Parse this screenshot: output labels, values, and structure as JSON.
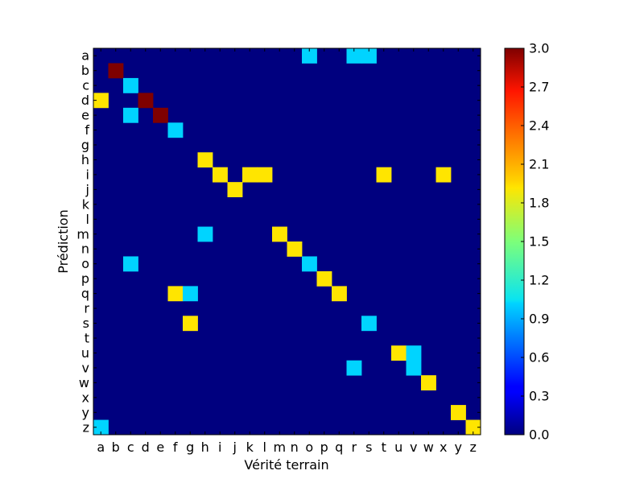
{
  "chart_data": {
    "type": "heatmap",
    "title": "",
    "xlabel": "Vérité terrain",
    "ylabel": "Prédiction",
    "x_categories": [
      "a",
      "b",
      "c",
      "d",
      "e",
      "f",
      "g",
      "h",
      "i",
      "j",
      "k",
      "l",
      "m",
      "n",
      "o",
      "p",
      "q",
      "r",
      "s",
      "t",
      "u",
      "v",
      "w",
      "x",
      "y",
      "z"
    ],
    "y_categories": [
      "a",
      "b",
      "c",
      "d",
      "e",
      "f",
      "g",
      "h",
      "i",
      "j",
      "k",
      "l",
      "m",
      "n",
      "o",
      "p",
      "q",
      "r",
      "s",
      "t",
      "u",
      "v",
      "w",
      "x",
      "y",
      "z"
    ],
    "cells": [
      {
        "x": "o",
        "y": "a",
        "value": 1
      },
      {
        "x": "r",
        "y": "a",
        "value": 1
      },
      {
        "x": "s",
        "y": "a",
        "value": 1
      },
      {
        "x": "b",
        "y": "b",
        "value": 3
      },
      {
        "x": "c",
        "y": "c",
        "value": 1
      },
      {
        "x": "a",
        "y": "d",
        "value": 2
      },
      {
        "x": "d",
        "y": "d",
        "value": 3
      },
      {
        "x": "c",
        "y": "e",
        "value": 1
      },
      {
        "x": "e",
        "y": "e",
        "value": 3
      },
      {
        "x": "f",
        "y": "f",
        "value": 1
      },
      {
        "x": "h",
        "y": "h",
        "value": 2
      },
      {
        "x": "i",
        "y": "i",
        "value": 2
      },
      {
        "x": "k",
        "y": "i",
        "value": 2
      },
      {
        "x": "l",
        "y": "i",
        "value": 2
      },
      {
        "x": "t",
        "y": "i",
        "value": 2
      },
      {
        "x": "x",
        "y": "i",
        "value": 2
      },
      {
        "x": "j",
        "y": "j",
        "value": 2
      },
      {
        "x": "h",
        "y": "m",
        "value": 1
      },
      {
        "x": "m",
        "y": "m",
        "value": 2
      },
      {
        "x": "n",
        "y": "n",
        "value": 2
      },
      {
        "x": "c",
        "y": "o",
        "value": 1
      },
      {
        "x": "o",
        "y": "o",
        "value": 1
      },
      {
        "x": "p",
        "y": "p",
        "value": 2
      },
      {
        "x": "f",
        "y": "q",
        "value": 2
      },
      {
        "x": "g",
        "y": "q",
        "value": 1
      },
      {
        "x": "q",
        "y": "q",
        "value": 2
      },
      {
        "x": "g",
        "y": "s",
        "value": 2
      },
      {
        "x": "s",
        "y": "s",
        "value": 1
      },
      {
        "x": "u",
        "y": "u",
        "value": 2
      },
      {
        "x": "v",
        "y": "u",
        "value": 1
      },
      {
        "x": "r",
        "y": "v",
        "value": 1
      },
      {
        "x": "v",
        "y": "v",
        "value": 1
      },
      {
        "x": "w",
        "y": "w",
        "value": 2
      },
      {
        "x": "y",
        "y": "y",
        "value": 2
      },
      {
        "x": "a",
        "y": "z",
        "value": 1
      },
      {
        "x": "z",
        "y": "z",
        "value": 2
      }
    ],
    "zlim": [
      0,
      3
    ],
    "colormap": "jet",
    "colorbar_ticks": [
      "0.0",
      "0.3",
      "0.6",
      "0.9",
      "1.2",
      "1.5",
      "1.8",
      "2.1",
      "2.4",
      "2.7",
      "3.0"
    ],
    "grid": false,
    "colors": {
      "0": "#00007f",
      "1": "#00d4ff",
      "2": "#ffe500",
      "3": "#7f0000"
    }
  }
}
